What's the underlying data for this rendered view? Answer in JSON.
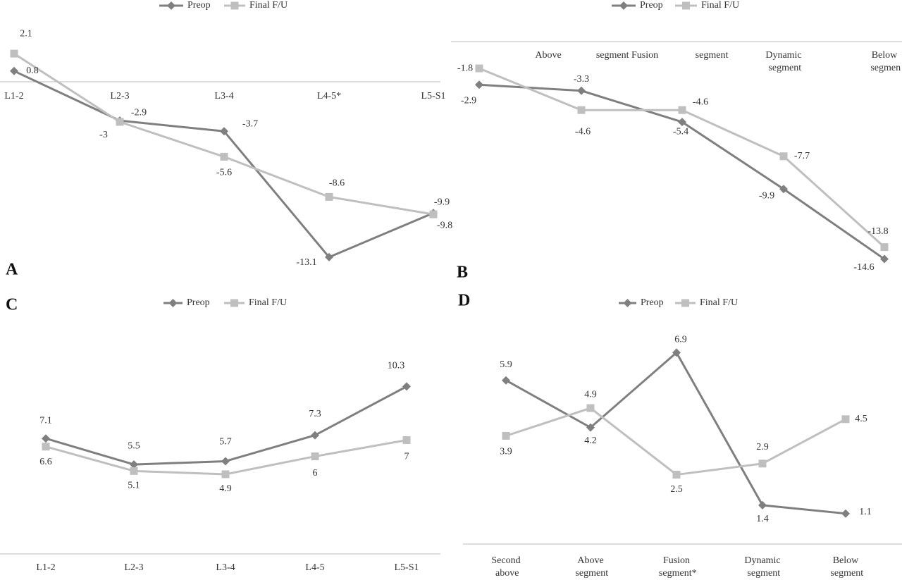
{
  "chart_data": [
    {
      "type": "line",
      "panel": "A",
      "categories": [
        "L1-2",
        "L2-3",
        "L3-4",
        "L4-5*",
        "L5-S1"
      ],
      "series": [
        {
          "name": "Preop",
          "color": "#7f7f7f",
          "marker": "diamond",
          "values": [
            0.8,
            -2.9,
            -3.7,
            -13.1,
            -9.8
          ]
        },
        {
          "name": "Final F/U",
          "color": "#bfbfbf",
          "marker": "square",
          "values": [
            2.1,
            -3,
            -5.6,
            -8.6,
            -9.9
          ]
        }
      ],
      "ylim": [
        -14,
        3
      ]
    },
    {
      "type": "line",
      "panel": "B",
      "categories": [
        "Above",
        "segment Fusion",
        "segment",
        "Dynamic segment",
        "Below segmen"
      ],
      "series": [
        {
          "name": "Preop",
          "color": "#7f7f7f",
          "marker": "diamond",
          "values": [
            -2.9,
            -3.3,
            -5.4,
            -9.9,
            -14.6
          ]
        },
        {
          "name": "Final F/U",
          "color": "#bfbfbf",
          "marker": "square",
          "values": [
            -1.8,
            -4.6,
            -4.6,
            -7.7,
            -13.8
          ]
        }
      ],
      "ylim": [
        -15,
        0
      ]
    },
    {
      "type": "line",
      "panel": "C",
      "categories": [
        "L1-2",
        "L2-3",
        "L3-4",
        "L4-5",
        "L5-S1"
      ],
      "series": [
        {
          "name": "Preop",
          "color": "#7f7f7f",
          "marker": "diamond",
          "values": [
            7.1,
            5.5,
            5.7,
            7.3,
            10.3
          ]
        },
        {
          "name": "Final F/U",
          "color": "#bfbfbf",
          "marker": "square",
          "values": [
            6.6,
            5.1,
            4.9,
            6,
            7
          ]
        }
      ],
      "ylim": [
        0,
        14
      ]
    },
    {
      "type": "line",
      "panel": "D",
      "categories": [
        "Second above segment",
        "Above segment",
        "Fusion segment*",
        "Dynamic segment",
        "Below segment"
      ],
      "series": [
        {
          "name": "Preop",
          "color": "#7f7f7f",
          "marker": "diamond",
          "values": [
            5.9,
            4.2,
            6.9,
            1.4,
            1.1
          ]
        },
        {
          "name": "Final F/U",
          "color": "#bfbfbf",
          "marker": "square",
          "values": [
            3.9,
            4.9,
            2.5,
            2.9,
            4.5
          ]
        }
      ],
      "ylim": [
        0,
        8
      ]
    }
  ]
}
